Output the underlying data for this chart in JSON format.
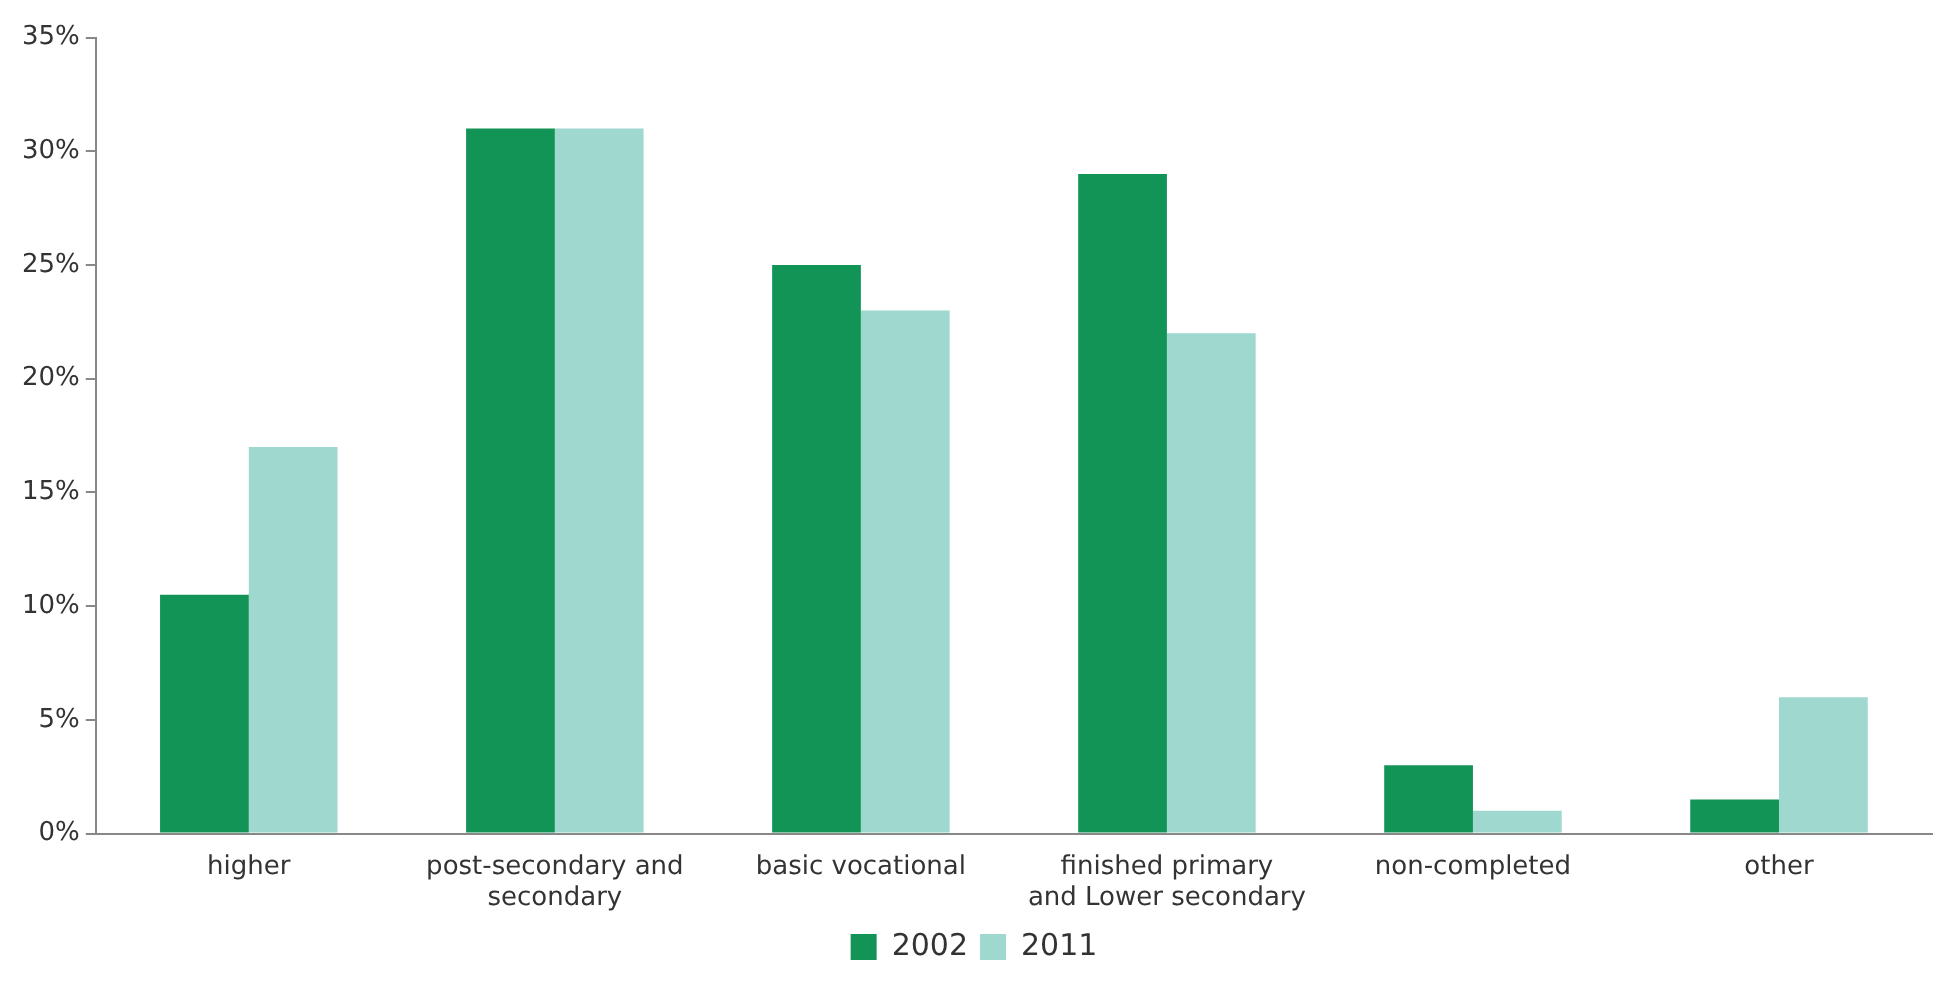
{
  "chart_data": {
    "type": "bar",
    "categories": [
      "higher",
      "post-secondary and secondary",
      "basic vocational",
      "finished primary and Lower secondary",
      "non-completed",
      "other"
    ],
    "series": [
      {
        "name": "2002",
        "color": "#129457",
        "values": [
          10.5,
          31,
          25,
          29,
          3,
          1.5
        ]
      },
      {
        "name": "2011",
        "color": "#9ed8cf",
        "values": [
          17,
          31,
          23,
          22,
          1,
          6
        ]
      }
    ],
    "ylim": [
      0,
      35
    ],
    "yticks": [
      {
        "value": 0,
        "label": "0%"
      },
      {
        "value": 5,
        "label": "5%"
      },
      {
        "value": 10,
        "label": "10%"
      },
      {
        "value": 15,
        "label": "15%"
      },
      {
        "value": 20,
        "label": "20%"
      },
      {
        "value": 25,
        "label": "25%"
      },
      {
        "value": 30,
        "label": "30%"
      },
      {
        "value": 35,
        "label": "35%"
      }
    ],
    "grid": false,
    "legend": "bottom"
  }
}
